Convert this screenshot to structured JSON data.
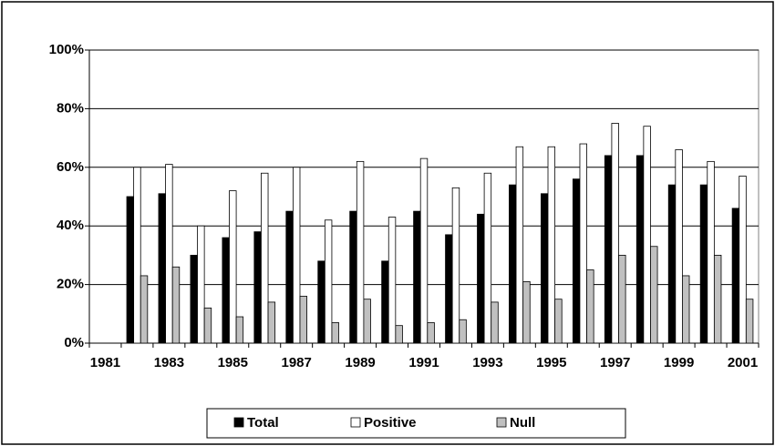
{
  "chart_data": {
    "type": "bar",
    "categories": [
      "1981",
      null,
      "1983",
      null,
      "1985",
      null,
      "1987",
      null,
      "1989",
      null,
      "1991",
      null,
      "1993",
      null,
      "1995",
      null,
      "1997",
      null,
      "1999",
      null,
      "2001"
    ],
    "series": [
      {
        "name": "Total",
        "color": "#000000",
        "values": [
          null,
          50,
          51,
          30,
          36,
          38,
          45,
          28,
          45,
          28,
          45,
          37,
          44,
          54,
          51,
          56,
          64,
          64,
          54,
          54,
          46
        ]
      },
      {
        "name": "Positive",
        "color": "#ffffff",
        "values": [
          null,
          60,
          61,
          40,
          52,
          58,
          60,
          42,
          62,
          43,
          63,
          53,
          58,
          67,
          67,
          68,
          75,
          74,
          66,
          62,
          57
        ]
      },
      {
        "name": "Null",
        "color": "#c0c0c0",
        "values": [
          null,
          23,
          26,
          12,
          9,
          14,
          16,
          7,
          15,
          6,
          7,
          8,
          14,
          21,
          15,
          25,
          30,
          33,
          23,
          30,
          15
        ]
      }
    ],
    "ylim": [
      0,
      100
    ],
    "yticks": [
      {
        "value": 0,
        "label": "0%"
      },
      {
        "value": 20,
        "label": "20%"
      },
      {
        "value": 40,
        "label": "40%"
      },
      {
        "value": 60,
        "label": "60%"
      },
      {
        "value": 80,
        "label": "80%"
      },
      {
        "value": 100,
        "label": "100%"
      }
    ],
    "grid": true,
    "legend": "bottom"
  }
}
